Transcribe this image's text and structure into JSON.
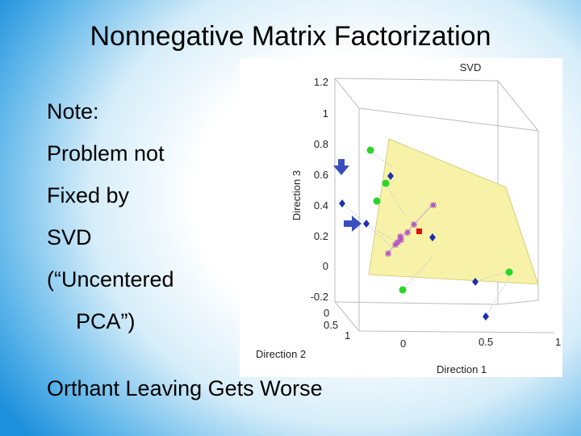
{
  "slide": {
    "title": "Nonnegative Matrix Factorization",
    "notes": [
      "Note:",
      "Problem not",
      "Fixed by",
      "SVD",
      "(“Uncentered",
      "PCA”)"
    ],
    "footer": "Orthant Leaving Gets Worse"
  },
  "colors": {
    "background_edge": "#1d8fdc",
    "plane_fill": "#f7f2a8",
    "green_points": "#2ad62a",
    "blue_points": "#1e2fb0",
    "magenta_points": "#b24fc8",
    "red_point": "#e01010"
  },
  "chart_data": {
    "type": "scatter",
    "title": "SVD",
    "projection": "3d",
    "axes": {
      "x": {
        "label": "Direction 1",
        "ticks": [
          "0",
          "0.5",
          "1"
        ]
      },
      "y": {
        "label": "Direction 2",
        "ticks": [
          "0",
          "0.5",
          "1"
        ]
      },
      "z": {
        "label": "Direction 3",
        "ticks": [
          "1.2",
          "1",
          "0.8",
          "0.6",
          "0.4",
          "0.2",
          "0",
          "-0.2"
        ]
      }
    },
    "grid": false,
    "legend": "none",
    "series": [
      {
        "marker": "green-circle",
        "count": 5
      },
      {
        "marker": "blue-diamond",
        "count": 6
      },
      {
        "marker": "magenta-star",
        "count": 8
      },
      {
        "marker": "red-square",
        "count": 1
      },
      {
        "marker": "blue-arrow",
        "count": 2
      }
    ]
  }
}
